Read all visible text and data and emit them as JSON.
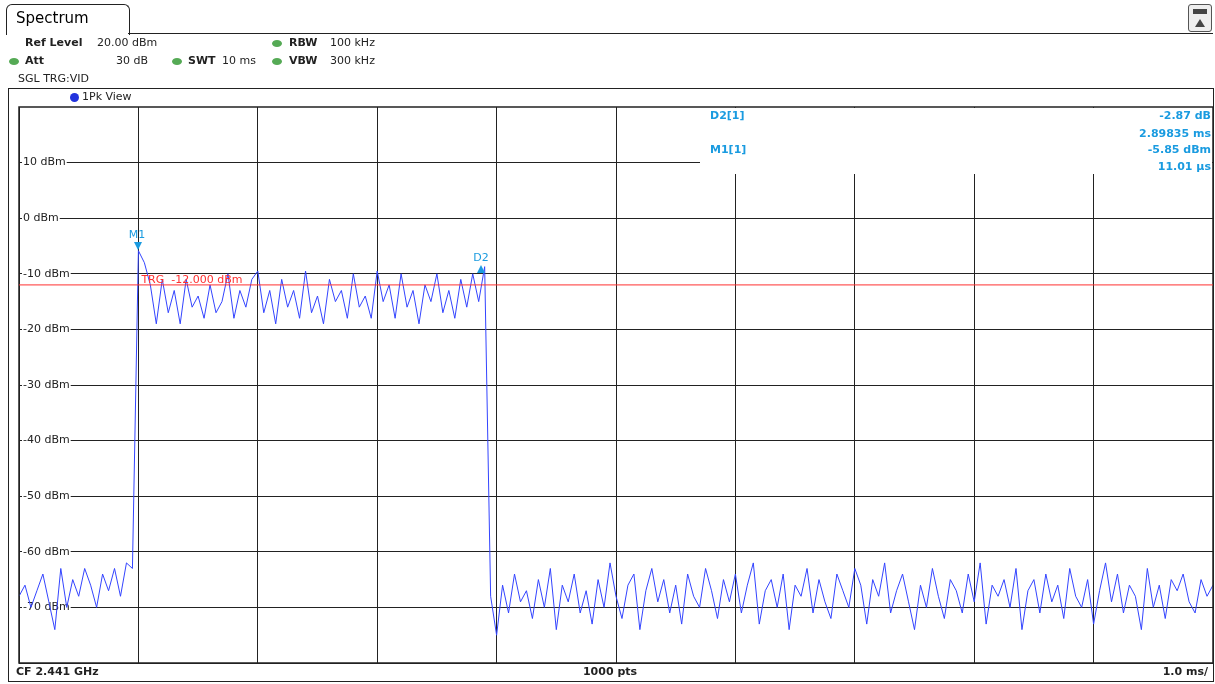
{
  "chart_data": {
    "type": "line",
    "title": "Spectrum",
    "annotations": [
      "Ref Level",
      "20.00 dBm",
      "Att",
      "30 dB",
      "SWT",
      "10 ms",
      "RBW",
      "100 kHz",
      "VBW",
      "300 kHz",
      "SGL TRG:VID",
      "1Pk View",
      "D2[1]",
      "-2.87 dB",
      "2.89835 ms",
      "M1[1]",
      "-5.85 dBm",
      "11.01 µs",
      "CF 2.441 GHz",
      "1000 pts",
      "1.0 ms/",
      "M1",
      "D2"
    ],
    "categories": [
      null,
      null,
      null,
      null,
      null,
      null,
      null,
      null,
      null,
      null,
      null,
      null,
      null,
      null,
      null,
      null,
      null,
      null,
      null,
      null,
      null,
      null,
      null,
      null,
      null,
      null,
      null,
      null,
      null,
      null,
      null,
      null,
      null,
      null,
      null,
      null,
      null,
      null,
      null,
      null,
      null,
      null,
      null,
      null,
      null,
      null,
      null,
      null,
      null,
      null,
      null,
      null,
      null,
      null,
      null,
      null,
      null,
      null,
      null,
      null,
      null,
      null,
      null,
      null,
      null,
      null,
      null,
      null,
      null,
      null,
      null,
      null,
      null,
      null,
      null,
      null,
      null,
      null,
      null,
      null,
      null,
      null,
      null,
      null,
      null,
      null,
      null,
      null,
      null,
      null,
      null,
      null,
      null,
      null,
      null,
      null,
      null,
      null,
      null,
      null,
      null,
      null,
      null,
      null,
      null,
      null,
      null,
      null,
      null,
      null,
      null,
      null,
      null,
      null,
      null,
      null,
      null,
      null,
      null,
      null,
      null,
      null,
      null,
      null,
      null,
      null,
      null,
      null,
      null,
      null,
      null,
      null,
      null,
      null,
      null,
      null,
      null,
      null,
      null,
      null,
      null,
      null,
      null,
      null,
      null,
      null,
      null,
      null,
      null,
      null,
      null,
      null,
      null,
      null,
      null,
      null,
      null,
      null,
      null,
      null,
      null,
      null,
      null,
      null,
      null,
      null,
      null,
      null,
      null,
      null,
      null,
      null,
      null,
      null,
      null,
      null,
      null,
      null,
      null,
      null,
      null,
      null,
      null,
      null,
      null,
      null,
      null,
      null,
      null,
      null,
      null,
      null,
      null,
      null,
      null,
      null,
      null,
      null,
      null,
      null,
      null
    ],
    "series": [
      {
        "color": "#3344ff",
        "values": [
          -68,
          -66,
          -70,
          -67,
          -64,
          -69,
          -74,
          -63,
          -70,
          -65,
          -68,
          -63,
          -66,
          -70,
          -64,
          -67,
          -63,
          -68,
          -62,
          -63,
          -5.85,
          -8,
          -12,
          -19,
          -11,
          -17,
          -13,
          -19,
          -11,
          -16,
          -14,
          -18,
          -12,
          -17,
          -15,
          -10,
          -18,
          -13,
          -16,
          -11,
          -9.5,
          -17,
          -13,
          -19,
          -11,
          -16,
          -13,
          -18,
          -9.5,
          -17,
          -14,
          -19,
          -11,
          -15,
          -13,
          -18,
          -10,
          -16,
          -14,
          -18,
          -9.5,
          -15,
          -12,
          -18,
          -10,
          -16,
          -13,
          -19,
          -12,
          -15,
          -10,
          -17,
          -13,
          -18,
          -11,
          -16,
          -10,
          -15,
          -8.72,
          -68,
          -75,
          -66,
          -71,
          -64,
          -69,
          -67,
          -72,
          -65,
          -70,
          -63,
          -74,
          -66,
          -69,
          -64,
          -71,
          -67,
          -73,
          -65,
          -70,
          -62,
          -68,
          -72,
          -66,
          -64,
          -74,
          -67,
          -63,
          -69,
          -65,
          -71,
          -66,
          -73,
          -64,
          -68,
          -70,
          -63,
          -67,
          -72,
          -65,
          -69,
          -64,
          -71,
          -66,
          -62,
          -73,
          -67,
          -65,
          -70,
          -64,
          -74,
          -66,
          -68,
          -63,
          -71,
          -65,
          -69,
          -72,
          -64,
          -67,
          -70,
          -63,
          -66,
          -73,
          -65,
          -68,
          -62,
          -71,
          -67,
          -64,
          -69,
          -74,
          -66,
          -70,
          -63,
          -68,
          -72,
          -65,
          -67,
          -71,
          -64,
          -69,
          -62,
          -73,
          -66,
          -68,
          -65,
          -70,
          -63,
          -74,
          -67,
          -65,
          -71,
          -64,
          -69,
          -66,
          -72,
          -63,
          -68,
          -70,
          -65,
          -73,
          -67,
          -62,
          -69,
          -64,
          -71,
          -66,
          -68,
          -74,
          -63,
          -70,
          -66,
          -72,
          -65,
          -67,
          -64,
          -69,
          -71,
          -65,
          -68,
          -66
        ]
      }
    ],
    "ylim": [
      -80,
      20
    ],
    "yticks": [
      {
        "value": 10,
        "label": "10 dBm"
      },
      {
        "value": 0,
        "label": "0 dBm"
      },
      {
        "value": -10,
        "label": "-10 dBm"
      },
      {
        "value": -20,
        "label": "-20 dBm"
      },
      {
        "value": -30,
        "label": "-30 dBm"
      },
      {
        "value": -40,
        "label": "-40 dBm"
      },
      {
        "value": -50,
        "label": "-50 dBm"
      },
      {
        "value": -60,
        "label": "-60 dBm"
      },
      {
        "value": -70,
        "label": "-70 dBm"
      }
    ],
    "ref_lines": [
      {
        "axis": "y",
        "value": -12,
        "label": "TRG  -12.000 dBm",
        "color": "#ff3030"
      }
    ],
    "grid": true,
    "legend": false,
    "marker": "none",
    "line_style": "solid",
    "tick_labels": "y"
  }
}
